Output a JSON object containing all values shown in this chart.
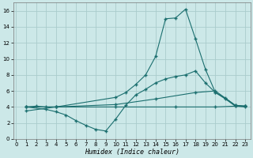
{
  "xlabel": "Humidex (Indice chaleur)",
  "background_color": "#cce8e8",
  "grid_color": "#aacccc",
  "line_color": "#1a6e6e",
  "xlim": [
    -0.3,
    23.5
  ],
  "ylim": [
    0,
    17
  ],
  "yticks": [
    0,
    2,
    4,
    6,
    8,
    10,
    12,
    14,
    16
  ],
  "xticks": [
    0,
    1,
    2,
    3,
    4,
    5,
    6,
    7,
    8,
    9,
    10,
    11,
    12,
    13,
    14,
    15,
    16,
    17,
    18,
    19,
    20,
    21,
    22,
    23
  ],
  "lines": [
    {
      "x": [
        1,
        2,
        3,
        4,
        10,
        11,
        12,
        13,
        14,
        15,
        16,
        17,
        18,
        19,
        20,
        21,
        22,
        23
      ],
      "y": [
        4.0,
        4.1,
        4.0,
        4.0,
        5.2,
        5.8,
        6.8,
        8.0,
        10.3,
        15.0,
        15.1,
        16.2,
        12.5,
        8.7,
        5.8,
        5.0,
        4.1,
        4.1
      ]
    },
    {
      "x": [
        1,
        3,
        4,
        5,
        6,
        7,
        8,
        9,
        10,
        11,
        12,
        13,
        14,
        15,
        16,
        17,
        18,
        19,
        20,
        21,
        22,
        23
      ],
      "y": [
        4.0,
        3.7,
        3.4,
        3.0,
        2.3,
        1.7,
        1.2,
        1.0,
        2.5,
        4.2,
        5.5,
        6.2,
        7.0,
        7.5,
        7.8,
        8.0,
        8.5,
        7.0,
        5.8,
        5.1,
        4.2,
        4.1
      ]
    },
    {
      "x": [
        1,
        4,
        10,
        14,
        18,
        20,
        22,
        23
      ],
      "y": [
        4.0,
        4.0,
        4.3,
        5.0,
        5.8,
        6.0,
        4.2,
        4.1
      ]
    },
    {
      "x": [
        1,
        4,
        10,
        16,
        20,
        22,
        23
      ],
      "y": [
        3.5,
        4.0,
        4.0,
        4.0,
        4.0,
        4.1,
        4.0
      ]
    }
  ]
}
